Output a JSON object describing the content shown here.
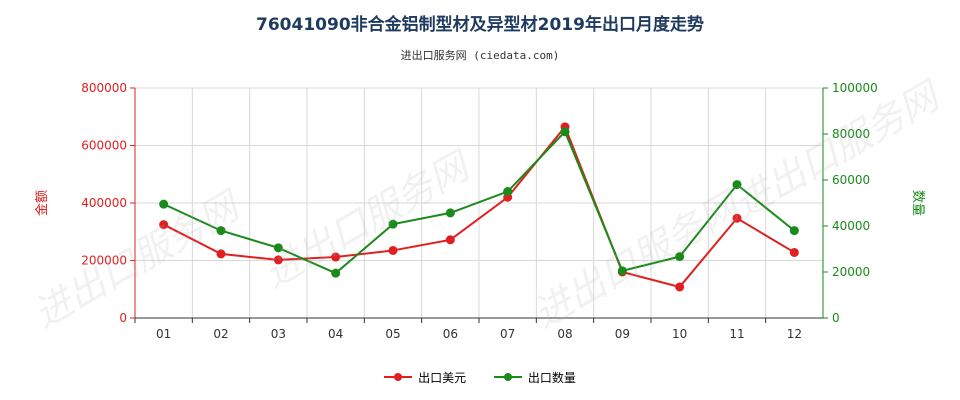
{
  "chart_data": {
    "type": "line",
    "title": "76041090非合金铝制型材及异型材2019年出口月度走势",
    "subtitle": "进出口服务网 (ciedata.com)",
    "categories": [
      "01",
      "02",
      "03",
      "04",
      "05",
      "06",
      "07",
      "08",
      "09",
      "10",
      "11",
      "12"
    ],
    "y_left": {
      "label": "金额",
      "ticks": [
        "0",
        "200000",
        "400000",
        "600000",
        "800000"
      ],
      "ylim": [
        0,
        800000
      ],
      "color": "#e02020"
    },
    "y_right": {
      "label": "数量",
      "ticks": [
        "0",
        "20000",
        "40000",
        "60000",
        "80000",
        "100000"
      ],
      "ylim": [
        0,
        100000
      ],
      "color": "#1a8a1a"
    },
    "grid": true,
    "legend_position": "bottom",
    "series": [
      {
        "name": "出口美元",
        "axis": "left",
        "color": "#e02020",
        "values": [
          325000,
          223000,
          202000,
          212000,
          235000,
          272000,
          420000,
          665000,
          160000,
          108000,
          347000,
          228000
        ]
      },
      {
        "name": "出口数量",
        "axis": "right",
        "color": "#1a8a1a",
        "values": [
          49500,
          38000,
          30500,
          19500,
          40800,
          45700,
          55000,
          81000,
          20500,
          26700,
          58000,
          38000
        ]
      }
    ]
  },
  "watermark": "进出口服务网 www.ciedata.com"
}
